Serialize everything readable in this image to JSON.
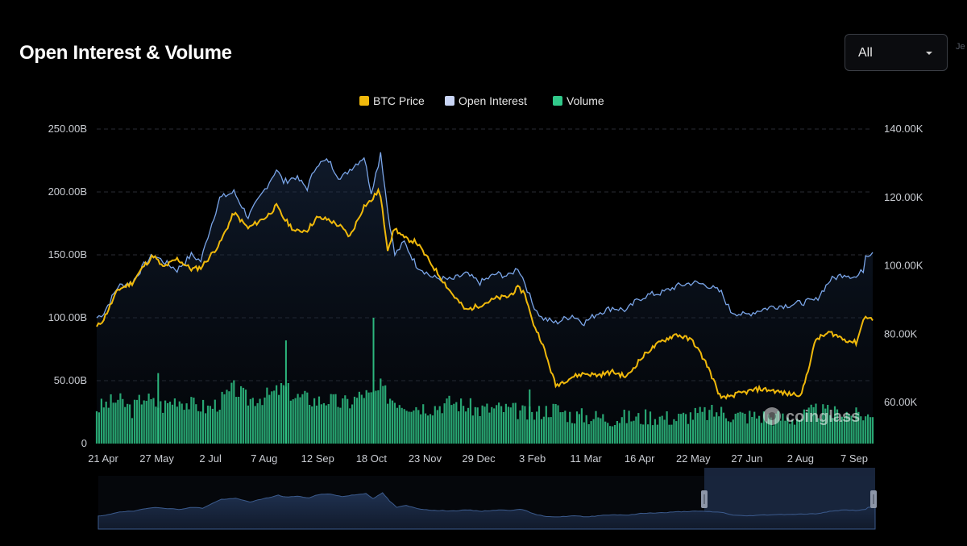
{
  "header": {
    "title": "Open Interest & Volume",
    "range_select": "All"
  },
  "watermark": "coinglass",
  "colors": {
    "background": "#000000",
    "btc_price": "#f0b90b",
    "open_interest": "#c9d5f5",
    "open_interest_line": "#7aa5e8",
    "volume": "#31c98a",
    "grid": "#2a2d33",
    "navigator_fill": "#1f3150",
    "navigator_selected": "#1c2a45"
  },
  "chart_data": {
    "type": "line",
    "title": "Open Interest & Volume",
    "legend": {
      "position": "top-center",
      "items": [
        "BTC Price",
        "Open Interest",
        "Volume"
      ]
    },
    "x_tick_labels": [
      "21 Apr",
      "27 May",
      "2 Jul",
      "7 Aug",
      "12 Sep",
      "18 Oct",
      "23 Nov",
      "29 Dec",
      "3 Feb",
      "11 Mar",
      "16 Apr",
      "22 May",
      "27 Jun",
      "2 Aug",
      "7 Sep"
    ],
    "y_left": {
      "ticks": [
        "0",
        "50.00B",
        "100.00B",
        "150.00B",
        "200.00B",
        "250.00B"
      ],
      "range": [
        0,
        250
      ]
    },
    "y_right": {
      "ticks": [
        "60.00K",
        "80.00K",
        "100.00K",
        "120.00K",
        "140.00K"
      ],
      "range": [
        48000,
        140000
      ]
    },
    "grid": true,
    "series": [
      {
        "name": "Open Interest",
        "axis": "left",
        "unit": "B",
        "kind": "area",
        "points": [
          [
            0,
            100
          ],
          [
            0.3,
            104
          ],
          [
            0.9,
            125
          ],
          [
            1.5,
            128
          ],
          [
            2.0,
            142
          ],
          [
            2.4,
            150
          ],
          [
            2.8,
            145
          ],
          [
            3.4,
            138
          ],
          [
            4.0,
            150
          ],
          [
            4.4,
            145
          ],
          [
            4.7,
            165
          ],
          [
            5.2,
            195
          ],
          [
            5.8,
            200
          ],
          [
            6.4,
            180
          ],
          [
            7.2,
            205
          ],
          [
            7.6,
            218
          ],
          [
            7.9,
            208
          ],
          [
            8.4,
            212
          ],
          [
            8.9,
            203
          ],
          [
            9.3,
            222
          ],
          [
            9.8,
            225
          ],
          [
            10.3,
            210
          ],
          [
            10.7,
            218
          ],
          [
            11.3,
            228
          ],
          [
            11.6,
            200
          ],
          [
            11.9,
            222
          ],
          [
            12.0,
            232
          ],
          [
            12.3,
            185
          ],
          [
            12.6,
            150
          ],
          [
            13.0,
            160
          ],
          [
            13.5,
            142
          ],
          [
            14.2,
            132
          ],
          [
            15.0,
            130
          ],
          [
            15.6,
            135
          ],
          [
            16.2,
            128
          ],
          [
            16.9,
            135
          ],
          [
            17.4,
            133
          ],
          [
            17.8,
            140
          ],
          [
            18.1,
            128
          ],
          [
            18.4,
            112
          ],
          [
            18.8,
            100
          ],
          [
            19.4,
            96
          ],
          [
            20.1,
            102
          ],
          [
            20.6,
            96
          ],
          [
            21.2,
            104
          ],
          [
            21.8,
            108
          ],
          [
            22.4,
            106
          ],
          [
            22.9,
            115
          ],
          [
            23.3,
            118
          ],
          [
            23.9,
            120
          ],
          [
            24.5,
            125
          ],
          [
            25.2,
            128
          ],
          [
            25.8,
            126
          ],
          [
            26.4,
            120
          ],
          [
            26.8,
            105
          ],
          [
            27.4,
            102
          ],
          [
            28.0,
            106
          ],
          [
            28.6,
            109
          ],
          [
            29.2,
            110
          ],
          [
            29.8,
            112
          ],
          [
            30.4,
            114
          ],
          [
            31.0,
            130
          ],
          [
            31.6,
            135
          ],
          [
            32.1,
            132
          ],
          [
            32.4,
            138
          ],
          [
            32.5,
            150
          ],
          [
            32.8,
            152
          ]
        ]
      },
      {
        "name": "BTC Price",
        "axis": "right",
        "unit": "USD",
        "kind": "line",
        "points": [
          [
            0,
            82000
          ],
          [
            0.3,
            84500
          ],
          [
            0.9,
            93000
          ],
          [
            1.5,
            95000
          ],
          [
            2.0,
            100000
          ],
          [
            2.4,
            103000
          ],
          [
            2.8,
            99500
          ],
          [
            3.4,
            102000
          ],
          [
            4.0,
            99000
          ],
          [
            4.4,
            99500
          ],
          [
            4.7,
            102000
          ],
          [
            5.2,
            106500
          ],
          [
            5.8,
            115500
          ],
          [
            6.4,
            111000
          ],
          [
            7.2,
            114500
          ],
          [
            7.6,
            117500
          ],
          [
            7.9,
            114000
          ],
          [
            8.4,
            110000
          ],
          [
            8.9,
            110500
          ],
          [
            9.3,
            114000
          ],
          [
            9.8,
            113500
          ],
          [
            10.3,
            111500
          ],
          [
            10.7,
            108500
          ],
          [
            11.3,
            117500
          ],
          [
            11.6,
            119000
          ],
          [
            11.9,
            122000
          ],
          [
            12.0,
            120000
          ],
          [
            12.3,
            105000
          ],
          [
            12.6,
            111000
          ],
          [
            13.0,
            108000
          ],
          [
            13.5,
            107000
          ],
          [
            14.2,
            100000
          ],
          [
            15.0,
            92000
          ],
          [
            15.6,
            87000
          ],
          [
            16.2,
            88500
          ],
          [
            16.9,
            90500
          ],
          [
            17.4,
            91000
          ],
          [
            17.8,
            93500
          ],
          [
            18.1,
            92000
          ],
          [
            18.4,
            84000
          ],
          [
            18.8,
            78000
          ],
          [
            19.4,
            65000
          ],
          [
            20.1,
            67500
          ],
          [
            20.6,
            68500
          ],
          [
            21.2,
            68000
          ],
          [
            21.8,
            69000
          ],
          [
            22.4,
            67500
          ],
          [
            22.9,
            72000
          ],
          [
            23.3,
            75000
          ],
          [
            23.9,
            78000
          ],
          [
            24.5,
            80000
          ],
          [
            25.2,
            78000
          ],
          [
            25.8,
            71000
          ],
          [
            26.4,
            61000
          ],
          [
            26.8,
            62000
          ],
          [
            27.4,
            63000
          ],
          [
            28.0,
            64000
          ],
          [
            28.6,
            63500
          ],
          [
            29.2,
            62500
          ],
          [
            29.8,
            62500
          ],
          [
            30.4,
            78500
          ],
          [
            31.0,
            80500
          ],
          [
            31.6,
            78500
          ],
          [
            32.1,
            77500
          ],
          [
            32.4,
            84000
          ],
          [
            32.5,
            85500
          ],
          [
            32.8,
            84000
          ]
        ]
      },
      {
        "name": "Volume",
        "axis": "left",
        "unit": "B",
        "kind": "bar",
        "points": [
          [
            0,
            28
          ],
          [
            0.9,
            35
          ],
          [
            1.5,
            27
          ],
          [
            2.0,
            38
          ],
          [
            2.4,
            32
          ],
          [
            2.8,
            30
          ],
          [
            3.4,
            36
          ],
          [
            4.0,
            31
          ],
          [
            4.4,
            30
          ],
          [
            4.7,
            28
          ],
          [
            5.2,
            33
          ],
          [
            5.8,
            44
          ],
          [
            6.4,
            35
          ],
          [
            7.2,
            38
          ],
          [
            7.6,
            41
          ],
          [
            7.9,
            45
          ],
          [
            8.4,
            37
          ],
          [
            8.9,
            36
          ],
          [
            9.3,
            34
          ],
          [
            9.8,
            35
          ],
          [
            10.3,
            32
          ],
          [
            10.7,
            33
          ],
          [
            11.3,
            40
          ],
          [
            11.6,
            37
          ],
          [
            11.9,
            42
          ],
          [
            12.0,
            45
          ],
          [
            12.3,
            38
          ],
          [
            12.6,
            35
          ],
          [
            13.0,
            32
          ],
          [
            13.5,
            30
          ],
          [
            14.2,
            29
          ],
          [
            15.0,
            33
          ],
          [
            15.6,
            30
          ],
          [
            16.2,
            27
          ],
          [
            16.9,
            28
          ],
          [
            17.4,
            27
          ],
          [
            17.8,
            26
          ],
          [
            18.1,
            24
          ],
          [
            18.4,
            22
          ],
          [
            18.8,
            26
          ],
          [
            19.4,
            28
          ],
          [
            20.1,
            22
          ],
          [
            20.6,
            22
          ],
          [
            21.2,
            21
          ],
          [
            21.8,
            20
          ],
          [
            22.4,
            21
          ],
          [
            22.9,
            20
          ],
          [
            23.3,
            22
          ],
          [
            23.9,
            21
          ],
          [
            24.5,
            20
          ],
          [
            25.2,
            23
          ],
          [
            25.8,
            24
          ],
          [
            26.4,
            25
          ],
          [
            26.8,
            23
          ],
          [
            27.4,
            22
          ],
          [
            28.0,
            22
          ],
          [
            28.6,
            21
          ],
          [
            29.2,
            20
          ],
          [
            29.8,
            21
          ],
          [
            30.4,
            26
          ],
          [
            31.0,
            24
          ],
          [
            31.6,
            25
          ],
          [
            32.1,
            22
          ],
          [
            32.4,
            23
          ],
          [
            32.5,
            22
          ],
          [
            32.8,
            21
          ]
        ]
      }
    ],
    "volume_spikes": [
      [
        11.7,
        100
      ],
      [
        8.0,
        82
      ],
      [
        2.6,
        56
      ],
      [
        18.3,
        43
      ]
    ]
  }
}
